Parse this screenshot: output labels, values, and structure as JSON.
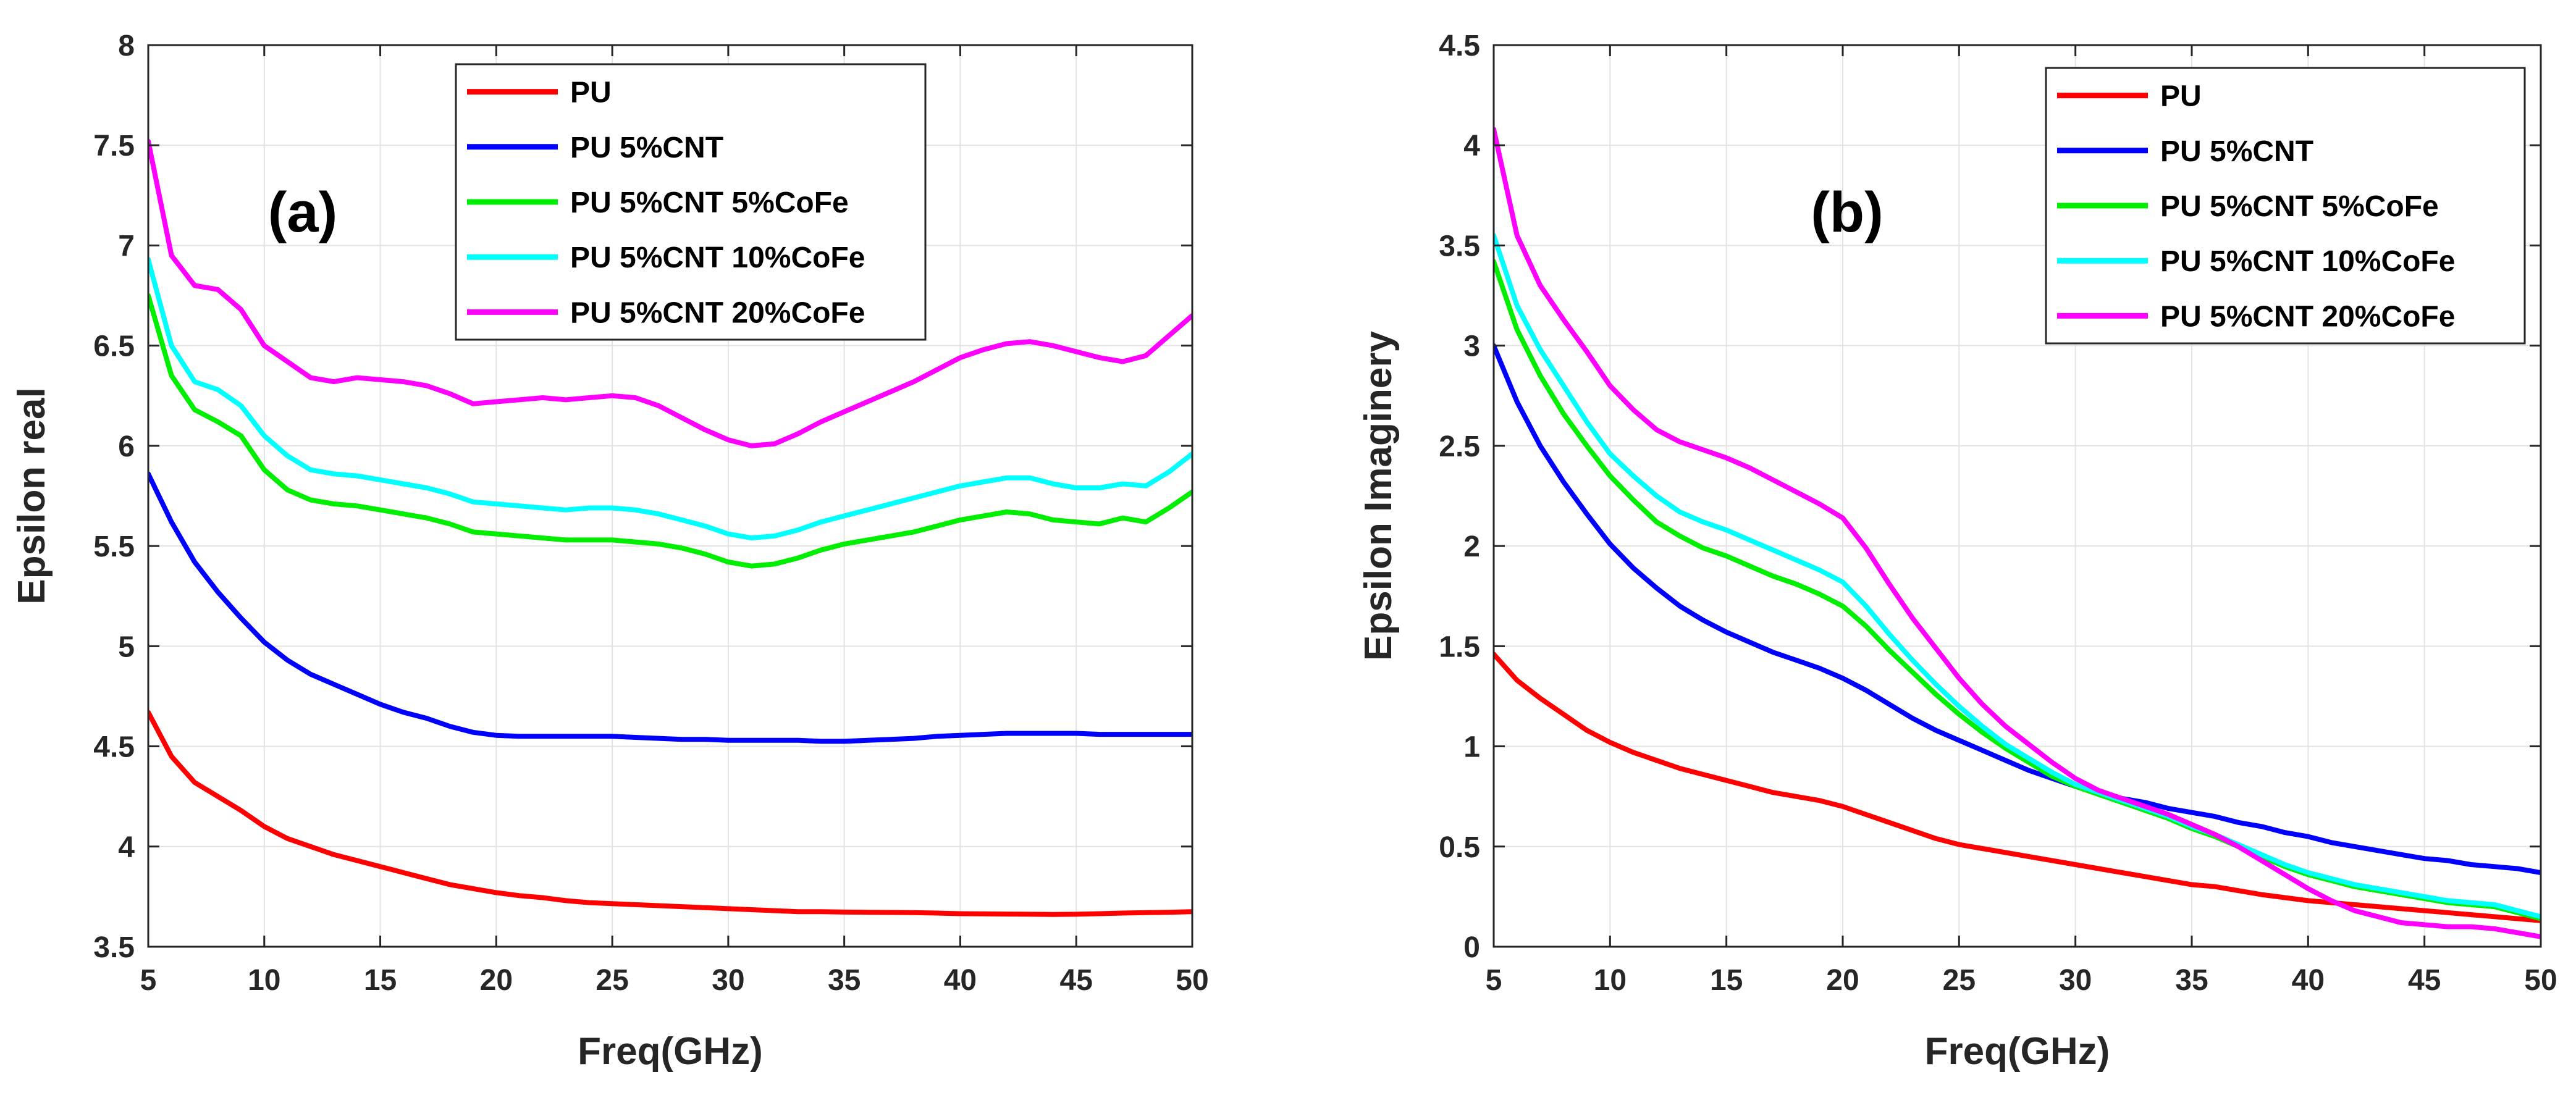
{
  "chart_data": [
    {
      "type": "line",
      "panel_label": "(a)",
      "xlabel": "Freq(GHz)",
      "ylabel": "Epsilon real",
      "xlim": [
        5,
        50
      ],
      "ylim": [
        3.5,
        8
      ],
      "xticks": [
        5,
        10,
        15,
        20,
        25,
        30,
        35,
        40,
        45,
        50
      ],
      "yticks": [
        3.5,
        4,
        4.5,
        5,
        5.5,
        6,
        6.5,
        7,
        7.5,
        8
      ],
      "grid": true,
      "legend_position": "top-center",
      "x": [
        5,
        6,
        7,
        8,
        9,
        10,
        11,
        12,
        13,
        14,
        15,
        16,
        17,
        18,
        19,
        20,
        21,
        22,
        23,
        24,
        25,
        26,
        27,
        28,
        29,
        30,
        31,
        32,
        33,
        34,
        35,
        36,
        37,
        38,
        39,
        40,
        41,
        42,
        43,
        44,
        45,
        46,
        47,
        48,
        49,
        50
      ],
      "series": [
        {
          "name": "PU",
          "color": "#ff0000",
          "values": [
            4.67,
            4.45,
            4.32,
            4.25,
            4.18,
            4.1,
            4.04,
            4.0,
            3.96,
            3.93,
            3.9,
            3.87,
            3.84,
            3.81,
            3.79,
            3.77,
            3.755,
            3.745,
            3.73,
            3.72,
            3.715,
            3.71,
            3.705,
            3.7,
            3.695,
            3.69,
            3.685,
            3.68,
            3.675,
            3.675,
            3.673,
            3.672,
            3.671,
            3.67,
            3.668,
            3.665,
            3.664,
            3.663,
            3.662,
            3.661,
            3.662,
            3.665,
            3.668,
            3.67,
            3.672,
            3.675
          ]
        },
        {
          "name": "PU 5%CNT",
          "color": "#0000ff",
          "values": [
            5.86,
            5.62,
            5.42,
            5.27,
            5.14,
            5.02,
            4.93,
            4.86,
            4.81,
            4.76,
            4.71,
            4.67,
            4.64,
            4.6,
            4.57,
            4.555,
            4.55,
            4.55,
            4.55,
            4.55,
            4.55,
            4.545,
            4.54,
            4.535,
            4.535,
            4.53,
            4.53,
            4.53,
            4.53,
            4.525,
            4.525,
            4.53,
            4.535,
            4.54,
            4.55,
            4.555,
            4.56,
            4.565,
            4.565,
            4.565,
            4.565,
            4.56,
            4.56,
            4.56,
            4.56,
            4.56
          ]
        },
        {
          "name": "PU 5%CNT 5%CoFe",
          "color": "#00ee00",
          "values": [
            6.75,
            6.35,
            6.18,
            6.12,
            6.05,
            5.88,
            5.78,
            5.73,
            5.71,
            5.7,
            5.68,
            5.66,
            5.64,
            5.61,
            5.57,
            5.56,
            5.55,
            5.54,
            5.53,
            5.53,
            5.53,
            5.52,
            5.51,
            5.49,
            5.46,
            5.42,
            5.4,
            5.41,
            5.44,
            5.48,
            5.51,
            5.53,
            5.55,
            5.57,
            5.6,
            5.63,
            5.65,
            5.67,
            5.66,
            5.63,
            5.62,
            5.61,
            5.64,
            5.62,
            5.69,
            5.77
          ]
        },
        {
          "name": "PU 5%CNT 10%CoFe",
          "color": "#00ffff",
          "values": [
            6.93,
            6.5,
            6.32,
            6.28,
            6.2,
            6.05,
            5.95,
            5.88,
            5.86,
            5.85,
            5.83,
            5.81,
            5.79,
            5.76,
            5.72,
            5.71,
            5.7,
            5.69,
            5.68,
            5.69,
            5.69,
            5.68,
            5.66,
            5.63,
            5.6,
            5.56,
            5.54,
            5.55,
            5.58,
            5.62,
            5.65,
            5.68,
            5.71,
            5.74,
            5.77,
            5.8,
            5.82,
            5.84,
            5.84,
            5.81,
            5.79,
            5.79,
            5.81,
            5.8,
            5.87,
            5.96
          ]
        },
        {
          "name": "PU 5%CNT 20%CoFe",
          "color": "#ff00ff",
          "values": [
            7.52,
            6.95,
            6.8,
            6.78,
            6.68,
            6.5,
            6.42,
            6.34,
            6.32,
            6.34,
            6.33,
            6.32,
            6.3,
            6.26,
            6.21,
            6.22,
            6.23,
            6.24,
            6.23,
            6.24,
            6.25,
            6.24,
            6.2,
            6.14,
            6.08,
            6.03,
            6.0,
            6.01,
            6.06,
            6.12,
            6.17,
            6.22,
            6.27,
            6.32,
            6.38,
            6.44,
            6.48,
            6.51,
            6.52,
            6.5,
            6.47,
            6.44,
            6.42,
            6.45,
            6.55,
            6.65
          ]
        }
      ]
    },
    {
      "type": "line",
      "panel_label": "(b)",
      "xlabel": "Freq(GHz)",
      "ylabel": "Epsilon Imaginery",
      "xlim": [
        5,
        50
      ],
      "ylim": [
        0,
        4.5
      ],
      "xticks": [
        5,
        10,
        15,
        20,
        25,
        30,
        35,
        40,
        45,
        50
      ],
      "yticks": [
        0,
        0.5,
        1,
        1.5,
        2,
        2.5,
        3,
        3.5,
        4,
        4.5
      ],
      "grid": true,
      "legend_position": "top-right",
      "x": [
        5,
        6,
        7,
        8,
        9,
        10,
        11,
        12,
        13,
        14,
        15,
        16,
        17,
        18,
        19,
        20,
        21,
        22,
        23,
        24,
        25,
        26,
        27,
        28,
        29,
        30,
        31,
        32,
        33,
        34,
        35,
        36,
        37,
        38,
        39,
        40,
        41,
        42,
        43,
        44,
        45,
        46,
        47,
        48,
        49,
        50
      ],
      "series": [
        {
          "name": "PU",
          "color": "#ff0000",
          "values": [
            1.46,
            1.33,
            1.24,
            1.16,
            1.08,
            1.02,
            0.97,
            0.93,
            0.89,
            0.86,
            0.83,
            0.8,
            0.77,
            0.75,
            0.73,
            0.7,
            0.66,
            0.62,
            0.58,
            0.54,
            0.51,
            0.49,
            0.47,
            0.45,
            0.43,
            0.41,
            0.39,
            0.37,
            0.35,
            0.33,
            0.31,
            0.3,
            0.28,
            0.26,
            0.245,
            0.23,
            0.22,
            0.21,
            0.2,
            0.19,
            0.18,
            0.17,
            0.16,
            0.15,
            0.14,
            0.13
          ]
        },
        {
          "name": "PU 5%CNT",
          "color": "#0000ff",
          "values": [
            3.0,
            2.72,
            2.5,
            2.32,
            2.16,
            2.01,
            1.89,
            1.79,
            1.7,
            1.63,
            1.57,
            1.52,
            1.47,
            1.43,
            1.39,
            1.34,
            1.28,
            1.21,
            1.14,
            1.08,
            1.03,
            0.98,
            0.93,
            0.88,
            0.84,
            0.8,
            0.77,
            0.74,
            0.72,
            0.69,
            0.67,
            0.65,
            0.62,
            0.6,
            0.57,
            0.55,
            0.52,
            0.5,
            0.48,
            0.46,
            0.44,
            0.43,
            0.41,
            0.4,
            0.39,
            0.37
          ]
        },
        {
          "name": "PU 5%CNT 5%CoFe",
          "color": "#00ee00",
          "values": [
            3.42,
            3.08,
            2.85,
            2.66,
            2.5,
            2.35,
            2.23,
            2.12,
            2.05,
            1.99,
            1.95,
            1.9,
            1.85,
            1.81,
            1.76,
            1.7,
            1.6,
            1.48,
            1.37,
            1.26,
            1.16,
            1.07,
            0.99,
            0.92,
            0.85,
            0.8,
            0.76,
            0.72,
            0.68,
            0.64,
            0.59,
            0.55,
            0.5,
            0.45,
            0.4,
            0.36,
            0.33,
            0.3,
            0.28,
            0.26,
            0.24,
            0.22,
            0.21,
            0.2,
            0.17,
            0.14
          ]
        },
        {
          "name": "PU 5%CNT 10%CoFe",
          "color": "#00ffff",
          "values": [
            3.55,
            3.2,
            2.98,
            2.8,
            2.62,
            2.46,
            2.35,
            2.25,
            2.17,
            2.12,
            2.08,
            2.03,
            1.98,
            1.93,
            1.88,
            1.82,
            1.7,
            1.56,
            1.43,
            1.31,
            1.2,
            1.1,
            1.01,
            0.94,
            0.87,
            0.81,
            0.77,
            0.73,
            0.69,
            0.65,
            0.6,
            0.56,
            0.51,
            0.46,
            0.41,
            0.37,
            0.34,
            0.31,
            0.29,
            0.27,
            0.25,
            0.23,
            0.22,
            0.21,
            0.18,
            0.15
          ]
        },
        {
          "name": "PU 5%CNT 20%CoFe",
          "color": "#ff00ff",
          "values": [
            4.08,
            3.55,
            3.3,
            3.13,
            2.97,
            2.8,
            2.68,
            2.58,
            2.52,
            2.48,
            2.44,
            2.39,
            2.33,
            2.27,
            2.21,
            2.14,
            1.99,
            1.81,
            1.64,
            1.49,
            1.34,
            1.21,
            1.1,
            1.01,
            0.92,
            0.84,
            0.78,
            0.74,
            0.7,
            0.66,
            0.61,
            0.56,
            0.5,
            0.43,
            0.36,
            0.29,
            0.23,
            0.18,
            0.15,
            0.12,
            0.11,
            0.1,
            0.1,
            0.09,
            0.07,
            0.05
          ]
        }
      ]
    }
  ]
}
